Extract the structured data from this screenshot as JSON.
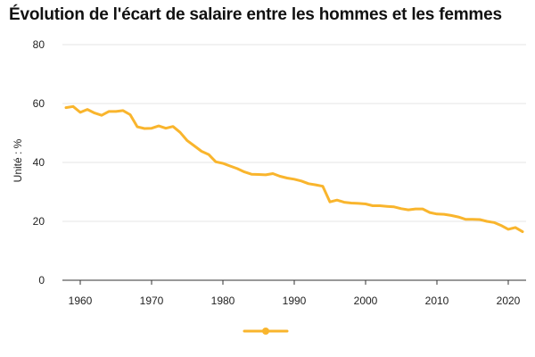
{
  "title": "Évolution de l'écart de salaire entre les hommes et les femmes",
  "colors": {
    "series": "#f9b52d",
    "grid": "#e6e6e6",
    "axis": "#333333"
  },
  "chart_data": {
    "type": "line",
    "title": "Évolution de l'écart de salaire entre les hommes et les femmes",
    "xlabel": "",
    "ylabel": "Unité : %",
    "xlim": [
      1957.5,
      2022.5
    ],
    "ylim": [
      0,
      80
    ],
    "x_ticks": [
      1960,
      1970,
      1980,
      1990,
      2000,
      2010,
      2020
    ],
    "y_ticks": [
      0,
      20,
      40,
      60,
      80
    ],
    "grid": "horizontal",
    "legend": "bottom-center",
    "series": [
      {
        "color": "#f9b52d",
        "x": [
          1958,
          1959,
          1960,
          1961,
          1962,
          1963,
          1964,
          1965,
          1966,
          1967,
          1968,
          1969,
          1970,
          1971,
          1972,
          1973,
          1974,
          1975,
          1976,
          1977,
          1978,
          1979,
          1980,
          1981,
          1982,
          1983,
          1984,
          1985,
          1986,
          1987,
          1988,
          1989,
          1990,
          1991,
          1992,
          1993,
          1994,
          1995,
          1996,
          1997,
          1998,
          1999,
          2000,
          2001,
          2002,
          2003,
          2004,
          2005,
          2006,
          2007,
          2008,
          2009,
          2010,
          2011,
          2012,
          2013,
          2014,
          2015,
          2016,
          2017,
          2018,
          2019,
          2020,
          2021,
          2022
        ],
        "values": [
          58.6,
          59.0,
          57.0,
          58.0,
          56.8,
          56.0,
          57.3,
          57.3,
          57.6,
          56.2,
          52.1,
          51.5,
          51.6,
          52.4,
          51.6,
          52.2,
          50.2,
          47.4,
          45.6,
          43.8,
          42.7,
          40.2,
          39.7,
          38.8,
          37.9,
          36.8,
          36.0,
          35.9,
          35.8,
          36.2,
          35.3,
          34.7,
          34.3,
          33.7,
          32.8,
          32.4,
          31.9,
          26.6,
          27.2,
          26.5,
          26.2,
          26.1,
          25.9,
          25.3,
          25.3,
          25.1,
          24.9,
          24.3,
          23.9,
          24.2,
          24.2,
          23.0,
          22.5,
          22.4,
          22.0,
          21.5,
          20.7,
          20.7,
          20.6,
          20.0,
          19.6,
          18.6,
          17.3,
          17.9,
          16.5
        ]
      }
    ]
  }
}
